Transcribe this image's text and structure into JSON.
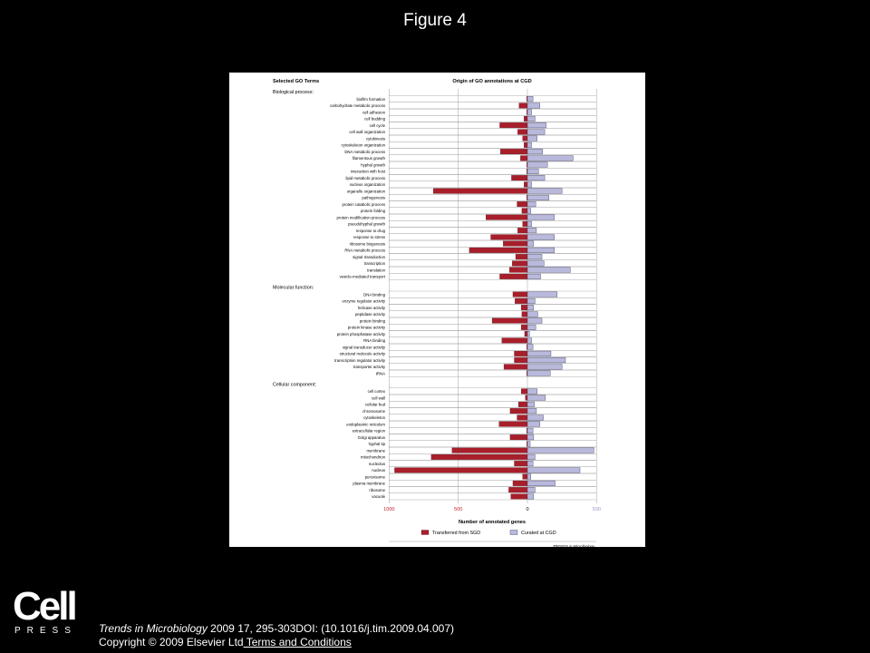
{
  "slide_title": "Figure 4",
  "citation": {
    "journal": "Trends in Microbiology",
    "reference": " 2009 17, 295-303DOI: (10.1016/j.tim.2009.04.007)",
    "copyright": "Copyright © 2009 Elsevier Ltd",
    "link_text": " Terms and Conditions"
  },
  "logo": {
    "word": "Cell",
    "press": "PRESS"
  },
  "chart_data": {
    "type": "bar",
    "orientation": "horizontal-diverging",
    "left_header": "Selected GO Terms",
    "title": "Origin of GO annotations at CGD",
    "xlabel": "Number of annotated genes",
    "xlim": [
      -1000,
      500
    ],
    "tick_labels": [
      "1000",
      "500",
      "0",
      "500"
    ],
    "tick_values": [
      -1000,
      -500,
      0,
      500
    ],
    "credit": "TRENDS in Microbiology",
    "colors": {
      "sgd": "#a81e2b",
      "cgd": "#b9b9dc",
      "axis_red": "#c0252b"
    },
    "legend": [
      {
        "name": "Transferred from SGD",
        "color": "#a81e2b"
      },
      {
        "name": "Curated at CGD",
        "color": "#b9b9dc"
      }
    ],
    "groups": [
      {
        "name": "Biological process:",
        "rows": [
          {
            "term": "biofilm formation",
            "sgd": 5,
            "cgd": 40
          },
          {
            "term": "carbohydrate metabolic process",
            "sgd": 60,
            "cgd": 90
          },
          {
            "term": "cell adhesion",
            "sgd": 5,
            "cgd": 30
          },
          {
            "term": "cell budding",
            "sgd": 25,
            "cgd": 55
          },
          {
            "term": "cell cycle",
            "sgd": 200,
            "cgd": 135
          },
          {
            "term": "cell wall organization",
            "sgd": 70,
            "cgd": 125
          },
          {
            "term": "cytokinesis",
            "sgd": 35,
            "cgd": 70
          },
          {
            "term": "cytoskeleton organization",
            "sgd": 25,
            "cgd": 30
          },
          {
            "term": "DNA metabolic process",
            "sgd": 195,
            "cgd": 110
          },
          {
            "term": "filamentous growth",
            "sgd": 50,
            "cgd": 330
          },
          {
            "term": "hyphal growth",
            "sgd": 5,
            "cgd": 145
          },
          {
            "term": "interaction with host",
            "sgd": 5,
            "cgd": 80
          },
          {
            "term": "lipid metabolic process",
            "sgd": 115,
            "cgd": 125
          },
          {
            "term": "nucleus organization",
            "sgd": 25,
            "cgd": 30
          },
          {
            "term": "organelle organization",
            "sgd": 680,
            "cgd": 250
          },
          {
            "term": "pathogenesis",
            "sgd": 5,
            "cgd": 155
          },
          {
            "term": "protein catabolic process",
            "sgd": 75,
            "cgd": 60
          },
          {
            "term": "protein folding",
            "sgd": 40,
            "cgd": 25
          },
          {
            "term": "protein modification process",
            "sgd": 300,
            "cgd": 195
          },
          {
            "term": "pseudohyphal growth",
            "sgd": 35,
            "cgd": 30
          },
          {
            "term": "response to drug",
            "sgd": 70,
            "cgd": 65
          },
          {
            "term": "response to stress",
            "sgd": 265,
            "cgd": 195
          },
          {
            "term": "ribosome biogenesis",
            "sgd": 175,
            "cgd": 45
          },
          {
            "term": "RNA metabolic process",
            "sgd": 420,
            "cgd": 195
          },
          {
            "term": "signal transduction",
            "sgd": 85,
            "cgd": 105
          },
          {
            "term": "transcription",
            "sgd": 110,
            "cgd": 120
          },
          {
            "term": "translation",
            "sgd": 130,
            "cgd": 310
          },
          {
            "term": "vesicle-mediated transport",
            "sgd": 200,
            "cgd": 95
          }
        ]
      },
      {
        "name": "Molecular function:",
        "rows": [
          {
            "term": "DNA binding",
            "sgd": 105,
            "cgd": 215
          },
          {
            "term": "enzyme regulator activity",
            "sgd": 90,
            "cgd": 55
          },
          {
            "term": "helicase activity",
            "sgd": 45,
            "cgd": 45
          },
          {
            "term": "peptidase activity",
            "sgd": 40,
            "cgd": 75
          },
          {
            "term": "protein binding",
            "sgd": 255,
            "cgd": 105
          },
          {
            "term": "protein kinase activity",
            "sgd": 45,
            "cgd": 60
          },
          {
            "term": "protein phosphatase activity",
            "sgd": 20,
            "cgd": 15
          },
          {
            "term": "RNA binding",
            "sgd": 185,
            "cgd": 30
          },
          {
            "term": "signal transducer activity",
            "sgd": 5,
            "cgd": 40
          },
          {
            "term": "structural molecule activity",
            "sgd": 95,
            "cgd": 170
          },
          {
            "term": "transcription regulator activity",
            "sgd": 95,
            "cgd": 275
          },
          {
            "term": "transporter activity",
            "sgd": 170,
            "cgd": 250
          },
          {
            "term": "tRNA",
            "sgd": 5,
            "cgd": 165
          }
        ]
      },
      {
        "name": "Cellular component:",
        "rows": [
          {
            "term": "cell cortex",
            "sgd": 45,
            "cgd": 70
          },
          {
            "term": "cell wall",
            "sgd": 15,
            "cgd": 130
          },
          {
            "term": "cellular bud",
            "sgd": 65,
            "cgd": 50
          },
          {
            "term": "chromosome",
            "sgd": 125,
            "cgd": 65
          },
          {
            "term": "cytoskeleton",
            "sgd": 75,
            "cgd": 115
          },
          {
            "term": "endoplasmic reticulum",
            "sgd": 205,
            "cgd": 90
          },
          {
            "term": "extracellular region",
            "sgd": 5,
            "cgd": 40
          },
          {
            "term": "Golgi apparatus",
            "sgd": 125,
            "cgd": 45
          },
          {
            "term": "hyphal tip",
            "sgd": 5,
            "cgd": 20
          },
          {
            "term": "membrane",
            "sgd": 545,
            "cgd": 480
          },
          {
            "term": "mitochondrion",
            "sgd": 695,
            "cgd": 55
          },
          {
            "term": "nucleolus",
            "sgd": 95,
            "cgd": 40
          },
          {
            "term": "nucleus",
            "sgd": 960,
            "cgd": 380
          },
          {
            "term": "peroxisome",
            "sgd": 35,
            "cgd": 25
          },
          {
            "term": "plasma membrane",
            "sgd": 105,
            "cgd": 200
          },
          {
            "term": "ribosome",
            "sgd": 135,
            "cgd": 55
          },
          {
            "term": "vacuole",
            "sgd": 120,
            "cgd": 45
          }
        ]
      }
    ]
  }
}
